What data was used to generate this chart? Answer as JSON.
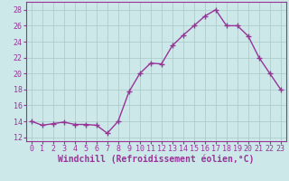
{
  "x": [
    0,
    1,
    2,
    3,
    4,
    5,
    6,
    7,
    8,
    9,
    10,
    11,
    12,
    13,
    14,
    15,
    16,
    17,
    18,
    19,
    20,
    21,
    22,
    23
  ],
  "y": [
    14.0,
    13.5,
    13.7,
    13.9,
    13.6,
    13.6,
    13.5,
    12.5,
    14.0,
    17.7,
    20.0,
    21.3,
    21.2,
    23.5,
    24.8,
    26.0,
    27.2,
    28.0,
    26.0,
    26.0,
    24.7,
    22.0,
    20.0,
    18.0
  ],
  "line_color": "#993399",
  "marker": "+",
  "bg_color": "#cce8e8",
  "grid_color": "#aac8c8",
  "xlabel": "Windchill (Refroidissement éolien,°C)",
  "ylim": [
    11.5,
    29.0
  ],
  "yticks": [
    12,
    14,
    16,
    18,
    20,
    22,
    24,
    26,
    28
  ],
  "xticks": [
    0,
    1,
    2,
    3,
    4,
    5,
    6,
    7,
    8,
    9,
    10,
    11,
    12,
    13,
    14,
    15,
    16,
    17,
    18,
    19,
    20,
    21,
    22,
    23
  ],
  "tick_color": "#993399",
  "label_fontsize": 6,
  "xlabel_fontsize": 7,
  "line_width": 1.0,
  "marker_size": 4,
  "marker_edge_width": 1.0
}
